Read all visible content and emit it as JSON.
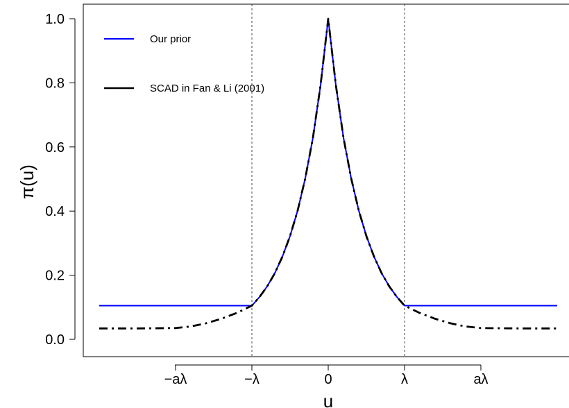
{
  "chart_data": {
    "type": "line",
    "title": "",
    "xlabel": "u",
    "ylabel": "π(u)",
    "ylim": [
      0,
      1
    ],
    "yticks": [
      "0.0",
      "0.2",
      "0.4",
      "0.6",
      "0.8",
      "1.0"
    ],
    "xticks": [
      "−aλ",
      "−λ",
      "0",
      "λ",
      "aλ"
    ],
    "x_tick_values": [
      -2,
      -1,
      0,
      1,
      2
    ],
    "xlim": [
      -3,
      3
    ],
    "reference_lines": [
      -1,
      1
    ],
    "legend_position": "top-left",
    "series": [
      {
        "name": "Our prior",
        "color": "#0000ff",
        "linestyle": "solid",
        "x": [
          -3,
          -1,
          -0.9,
          -0.8,
          -0.7,
          -0.6,
          -0.5,
          -0.4,
          -0.3,
          -0.2,
          -0.1,
          0,
          0.1,
          0.2,
          0.3,
          0.4,
          0.5,
          0.6,
          0.7,
          0.8,
          0.9,
          1,
          3
        ],
        "y": [
          0.105,
          0.105,
          0.132,
          0.165,
          0.206,
          0.258,
          0.322,
          0.402,
          0.503,
          0.629,
          0.793,
          1.0,
          0.793,
          0.629,
          0.503,
          0.402,
          0.322,
          0.258,
          0.206,
          0.165,
          0.132,
          0.105,
          0.105
        ]
      },
      {
        "name": "SCAD in Fan & Li (2001)",
        "color": "#000000",
        "linestyle": "dashdot",
        "x": [
          -3,
          -2.5,
          -2,
          -1.8,
          -1.6,
          -1.4,
          -1.2,
          -1,
          -0.9,
          -0.8,
          -0.7,
          -0.6,
          -0.5,
          -0.4,
          -0.3,
          -0.2,
          -0.1,
          0,
          0.1,
          0.2,
          0.3,
          0.4,
          0.5,
          0.6,
          0.7,
          0.8,
          0.9,
          1,
          1.2,
          1.4,
          1.6,
          1.8,
          2,
          2.5,
          3
        ],
        "y": [
          0.034,
          0.034,
          0.035,
          0.04,
          0.05,
          0.064,
          0.082,
          0.105,
          0.132,
          0.165,
          0.206,
          0.258,
          0.322,
          0.402,
          0.503,
          0.629,
          0.793,
          1.0,
          0.793,
          0.629,
          0.503,
          0.402,
          0.322,
          0.258,
          0.206,
          0.165,
          0.132,
          0.105,
          0.082,
          0.064,
          0.05,
          0.04,
          0.035,
          0.034,
          0.034
        ]
      }
    ]
  }
}
